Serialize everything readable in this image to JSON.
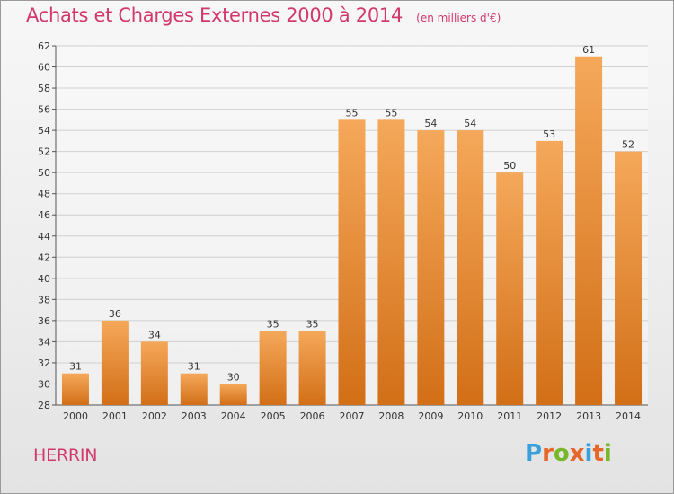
{
  "header": {
    "title": "Achats et Charges Externes 2000 à 2014",
    "subtitle": "(en milliers d'€)"
  },
  "footer": {
    "place": "HERRIN",
    "logo_text": "Proxiti"
  },
  "colors": {
    "title": "#d2386c",
    "bar_light": "#f5a85a",
    "bar_dark": "#d26f17",
    "grid": "#d0d0d0",
    "logo_letters": [
      "#3aa0dc",
      "#e5672a",
      "#77b82a",
      "#e5672a",
      "#3aa0dc",
      "#e5672a",
      "#77b82a"
    ]
  },
  "chart_data": {
    "type": "bar",
    "categories": [
      "2000",
      "2001",
      "2002",
      "2003",
      "2004",
      "2005",
      "2006",
      "2007",
      "2008",
      "2009",
      "2010",
      "2011",
      "2012",
      "2013",
      "2014"
    ],
    "values": [
      31,
      36,
      34,
      31,
      30,
      35,
      35,
      55,
      55,
      54,
      54,
      50,
      53,
      61,
      52
    ],
    "title": "Achats et Charges Externes 2000 à 2014",
    "ylim": [
      28,
      62
    ],
    "yticks": [
      28,
      30,
      32,
      34,
      36,
      38,
      40,
      42,
      44,
      46,
      48,
      50,
      52,
      54,
      56,
      58,
      60,
      62
    ],
    "grid": true,
    "data_labels": true
  }
}
